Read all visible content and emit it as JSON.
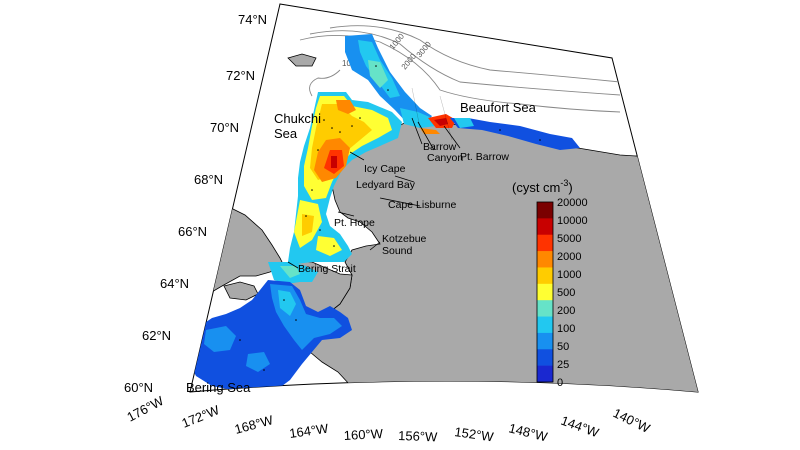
{
  "map": {
    "colorbar": {
      "title": "(cyst cm",
      "title_exp": "-3",
      "title_close": ")",
      "levels": [
        "20000",
        "10000",
        "5000",
        "2000",
        "1000",
        "500",
        "200",
        "100",
        "50",
        "25",
        "0"
      ],
      "colors": [
        "#7a0000",
        "#c80000",
        "#ff3300",
        "#ff8800",
        "#ffcc00",
        "#ffff33",
        "#66e3c8",
        "#22c8f0",
        "#1890f0",
        "#1050e0",
        "#1a28d0"
      ]
    },
    "latitude_labels": [
      {
        "id": "74",
        "text": "74°N"
      },
      {
        "id": "72",
        "text": "72°N"
      },
      {
        "id": "70",
        "text": "70°N"
      },
      {
        "id": "68",
        "text": "68°N"
      },
      {
        "id": "66",
        "text": "66°N"
      },
      {
        "id": "64",
        "text": "64°N"
      },
      {
        "id": "62",
        "text": "62°N"
      },
      {
        "id": "60",
        "text": "60°N"
      }
    ],
    "longitude_labels": [
      {
        "id": "176",
        "text": "176°W"
      },
      {
        "id": "172",
        "text": "172°W"
      },
      {
        "id": "168",
        "text": "168°W"
      },
      {
        "id": "164",
        "text": "164°W"
      },
      {
        "id": "160",
        "text": "160°W"
      },
      {
        "id": "156",
        "text": "156°W"
      },
      {
        "id": "152",
        "text": "152°W"
      },
      {
        "id": "148",
        "text": "148°W"
      },
      {
        "id": "144",
        "text": "144°W"
      },
      {
        "id": "140",
        "text": "140°W"
      }
    ],
    "seas": {
      "beaufort": "Beaufort Sea",
      "chukchi_1": "Chukchi",
      "chukchi_2": "Sea",
      "bering": "Bering Sea"
    },
    "places": {
      "barrow": "Barrow",
      "canyon": "Canyon",
      "pt_barrow": "Pt. Barrow",
      "icy_cape": "Icy Cape",
      "ledyard_bay": "Ledyard Bay",
      "cape_lisburne": "Cape Lisburne",
      "pt_hope": "Pt. Hope",
      "kotzebue": "Kotzebue",
      "sound": "Sound",
      "bering_strait": "Bering Strait"
    },
    "contour_labels": {
      "c100": "100",
      "c1000": "1000",
      "c2000": "2000",
      "c3000": "3000"
    }
  }
}
